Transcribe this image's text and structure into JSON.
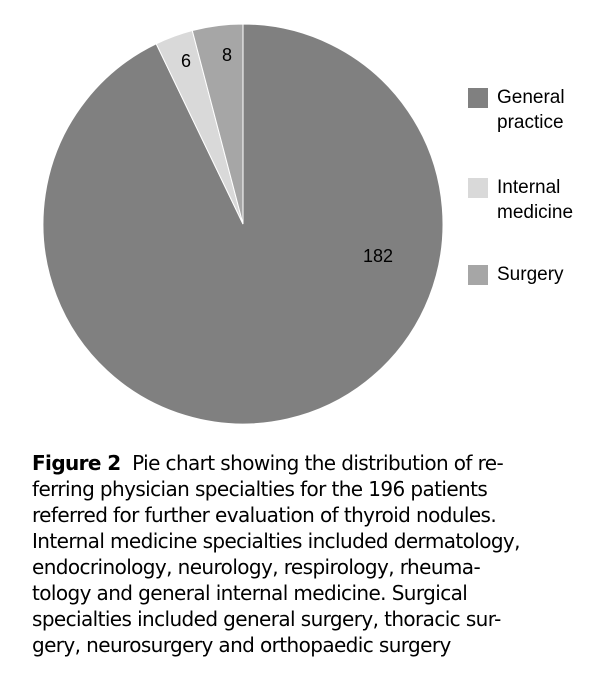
{
  "chart_data": {
    "type": "pie",
    "categories": [
      "General practice",
      "Internal medicine",
      "Surgery"
    ],
    "values": [
      182,
      6,
      8
    ],
    "colors": [
      "#808080",
      "#d9d9d9",
      "#a6a6a6"
    ],
    "legend": "right"
  },
  "caption": {
    "label": "Figure 2",
    "lines": [
      "Pie chart showing the distribution of re-",
      "ferring physician specialties for the 196 patients",
      "referred for further evaluation of thyroid nodules.",
      "Internal medicine specialties included dermatology,",
      "endocrinology, neurology, respirology, rheuma-",
      "tology and general internal medicine. Surgical",
      "specialties included general surgery, thoracic sur-",
      "gery, neurosurgery and orthopaedic surgery"
    ]
  }
}
